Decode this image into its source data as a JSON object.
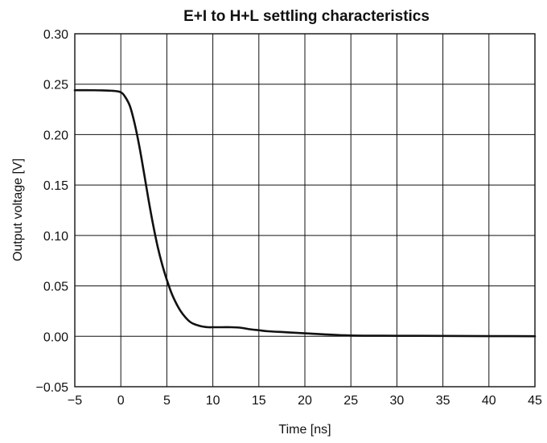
{
  "chart_data": {
    "type": "line",
    "title": "E+I to H+L settling characteristics",
    "xlabel": "Time [ns]",
    "ylabel": "Output voltage [V]",
    "xlim": [
      -5,
      45
    ],
    "ylim": [
      -0.05,
      0.3
    ],
    "xticks": [
      -5,
      0,
      5,
      10,
      15,
      20,
      25,
      30,
      35,
      40,
      45
    ],
    "yticks": [
      -0.05,
      0.0,
      0.05,
      0.1,
      0.15,
      0.2,
      0.25,
      0.3
    ],
    "xtick_labels": [
      "−5",
      "0",
      "5",
      "10",
      "15",
      "20",
      "25",
      "30",
      "35",
      "40",
      "45"
    ],
    "ytick_labels": [
      "−0.05",
      "0.00",
      "0.05",
      "0.10",
      "0.15",
      "0.20",
      "0.25",
      "0.30"
    ],
    "grid": true,
    "legend": "none",
    "series": [
      {
        "color": "#111111",
        "x": [
          -5,
          -3,
          -1,
          0,
          0.5,
          1,
          1.5,
          2,
          2.5,
          3,
          3.5,
          4,
          4.5,
          5,
          5.5,
          6,
          6.5,
          7,
          7.5,
          8,
          8.5,
          9,
          9.5,
          10,
          11,
          12,
          13,
          14,
          15,
          16,
          18,
          20,
          22,
          25,
          30,
          35,
          40,
          45
        ],
        "y": [
          0.244,
          0.244,
          0.2435,
          0.242,
          0.237,
          0.228,
          0.211,
          0.189,
          0.163,
          0.136,
          0.111,
          0.089,
          0.071,
          0.056,
          0.043,
          0.033,
          0.025,
          0.019,
          0.0145,
          0.012,
          0.0105,
          0.0095,
          0.009,
          0.009,
          0.009,
          0.009,
          0.0085,
          0.007,
          0.006,
          0.005,
          0.004,
          0.003,
          0.002,
          0.0008,
          0.0005,
          0.0004,
          0.0002,
          0.0001
        ]
      }
    ]
  }
}
